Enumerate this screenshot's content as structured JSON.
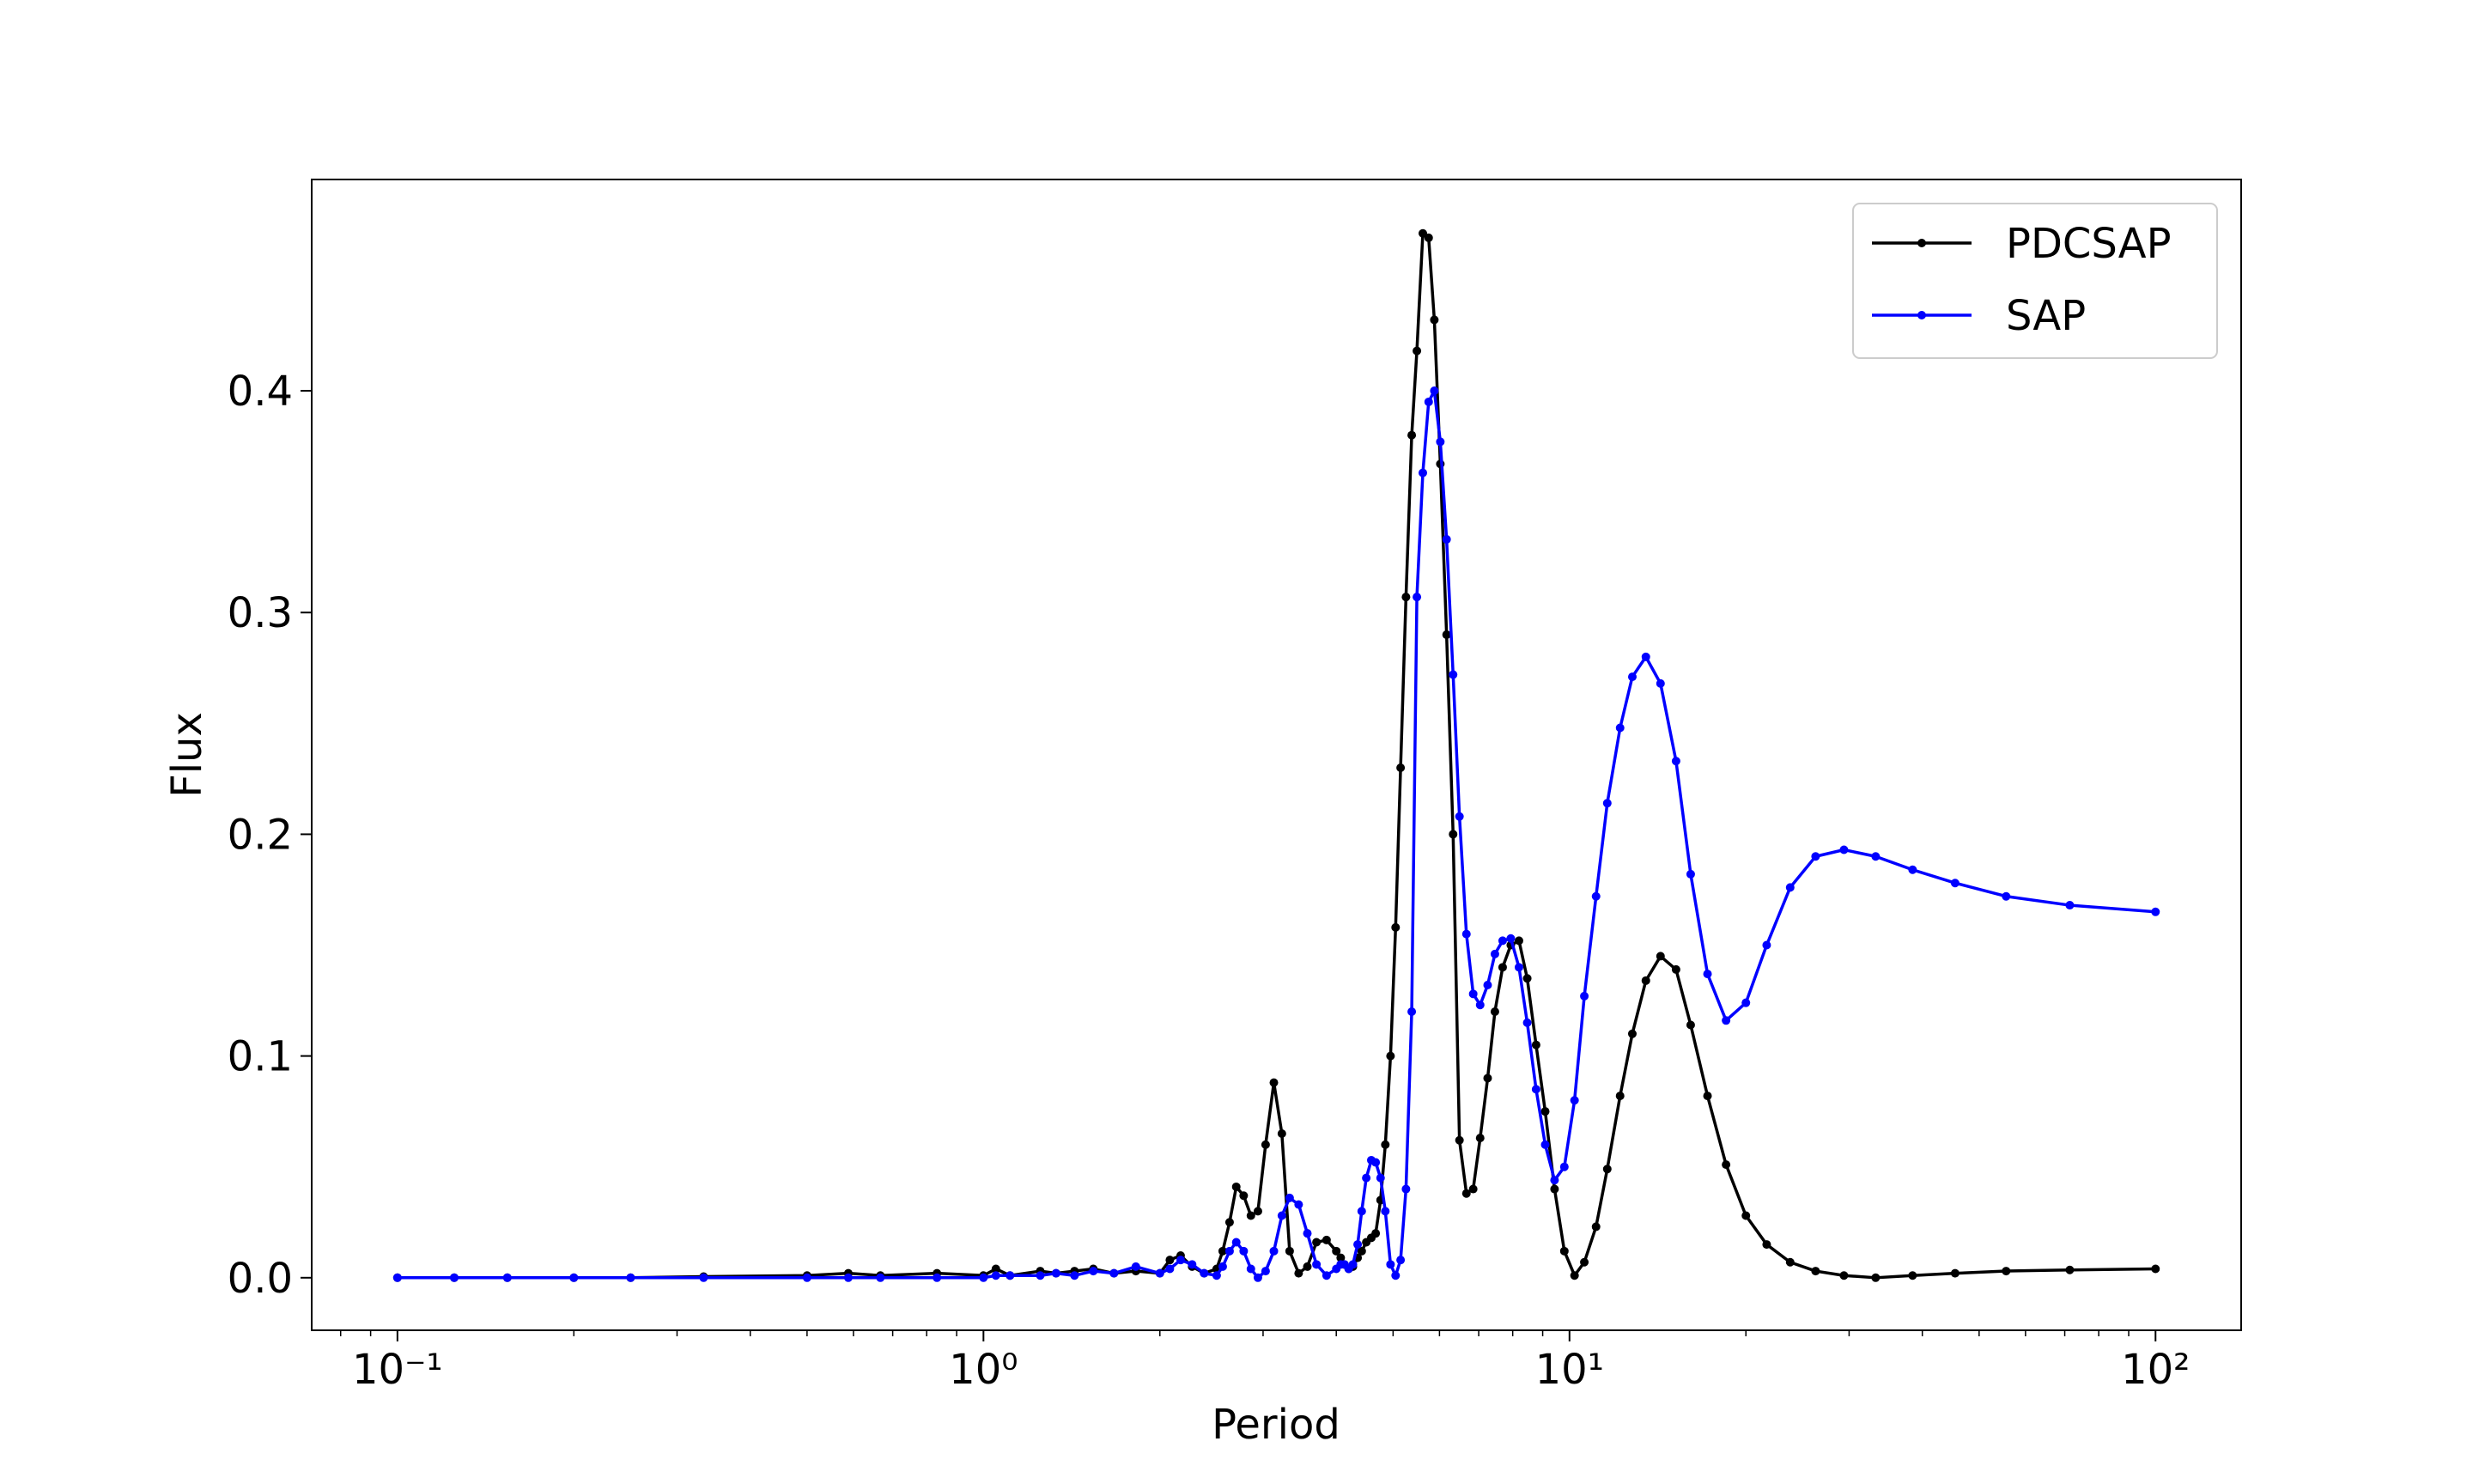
{
  "chart_data": {
    "type": "line",
    "xlabel": "Period",
    "ylabel": "Flux",
    "xscale": "log",
    "xlim": [
      0.0714,
      140
    ],
    "ylim": [
      -0.0237,
      0.4953
    ],
    "xticks": [
      {
        "value": 0.1,
        "label": "10⁻¹"
      },
      {
        "value": 1,
        "label": "10⁰"
      },
      {
        "value": 10,
        "label": "10¹"
      },
      {
        "value": 100,
        "label": "10²"
      }
    ],
    "xminorticks": [
      0.08,
      0.09,
      0.2,
      0.3,
      0.4,
      0.5,
      0.6,
      0.7,
      0.8,
      0.9,
      2,
      3,
      4,
      5,
      6,
      7,
      8,
      9,
      20,
      30,
      40,
      50,
      60,
      70,
      80,
      90
    ],
    "yticks": [
      {
        "value": 0,
        "label": "0.0"
      },
      0.1,
      0.2,
      0.3,
      0.4
    ],
    "legend": "upper right",
    "x": [
      100,
      71.4,
      55.6,
      45.5,
      38.5,
      33.3,
      29.4,
      26.3,
      23.8,
      21.7,
      20,
      18.5,
      17.2,
      16.1,
      15.2,
      14.3,
      13.5,
      12.8,
      12.2,
      11.6,
      11.1,
      10.6,
      10.2,
      9.8,
      9.43,
      9.09,
      8.77,
      8.47,
      8.2,
      7.94,
      7.69,
      7.46,
      7.25,
      7.04,
      6.85,
      6.67,
      6.49,
      6.33,
      6.17,
      6.02,
      5.88,
      5.75,
      5.62,
      5.49,
      5.38,
      5.26,
      5.15,
      5.05,
      4.95,
      4.85,
      4.76,
      4.67,
      4.59,
      4.5,
      4.42,
      4.35,
      4.27,
      4.2,
      4.13,
      4.07,
      4,
      3.85,
      3.7,
      3.57,
      3.45,
      3.33,
      3.23,
      3.13,
      3.03,
      2.94,
      2.86,
      2.78,
      2.7,
      2.63,
      2.56,
      2.5,
      2.38,
      2.27,
      2.17,
      2.08,
      2,
      1.82,
      1.67,
      1.54,
      1.43,
      1.33,
      1.25,
      1.11,
      1.05,
      1,
      0.833,
      0.667,
      0.588,
      0.5,
      0.333,
      0.25,
      0.2,
      0.154,
      0.125,
      0.1
    ],
    "series": [
      {
        "name": "PDCSAP",
        "color": "#000000",
        "values": [
          0.004,
          0.0035,
          0.003,
          0.002,
          0.001,
          0,
          0.001,
          0.003,
          0.007,
          0.015,
          0.028,
          0.051,
          0.082,
          0.114,
          0.139,
          0.145,
          0.134,
          0.11,
          0.082,
          0.049,
          0.023,
          0.007,
          0.001,
          0.012,
          0.04,
          0.075,
          0.105,
          0.135,
          0.152,
          0.15,
          0.14,
          0.12,
          0.09,
          0.063,
          0.04,
          0.038,
          0.062,
          0.2,
          0.29,
          0.367,
          0.432,
          0.469,
          0.471,
          0.418,
          0.38,
          0.307,
          0.23,
          0.158,
          0.1,
          0.06,
          0.035,
          0.02,
          0.018,
          0.016,
          0.012,
          0.009,
          0.005,
          0.004,
          0.006,
          0.009,
          0.012,
          0.017,
          0.016,
          0.005,
          0.002,
          0.012,
          0.065,
          0.088,
          0.06,
          0.03,
          0.028,
          0.037,
          0.041,
          0.025,
          0.012,
          0.004,
          0.002,
          0.005,
          0.01,
          0.008,
          0.002,
          0.003,
          0.002,
          0.004,
          0.003,
          0.002,
          0.003,
          0.001,
          0.004,
          0.001,
          0.002,
          0.001,
          0.002,
          0.001,
          0.0005,
          0,
          0,
          0,
          0,
          0
        ]
      },
      {
        "name": "SAP",
        "color": "#0000ff",
        "values": [
          0.165,
          0.168,
          0.172,
          0.178,
          0.184,
          0.19,
          0.193,
          0.19,
          0.176,
          0.15,
          0.124,
          0.116,
          0.137,
          0.182,
          0.233,
          0.268,
          0.28,
          0.271,
          0.248,
          0.214,
          0.172,
          0.127,
          0.08,
          0.05,
          0.044,
          0.06,
          0.085,
          0.115,
          0.14,
          0.153,
          0.152,
          0.146,
          0.132,
          0.123,
          0.128,
          0.155,
          0.208,
          0.272,
          0.333,
          0.377,
          0.4,
          0.395,
          0.363,
          0.307,
          0.12,
          0.04,
          0.008,
          0.001,
          0.006,
          0.03,
          0.045,
          0.052,
          0.053,
          0.045,
          0.03,
          0.015,
          0.006,
          0.004,
          0.006,
          0.006,
          0.004,
          0.001,
          0.006,
          0.02,
          0.033,
          0.036,
          0.028,
          0.012,
          0.003,
          0,
          0.004,
          0.012,
          0.016,
          0.012,
          0.005,
          0.001,
          0.002,
          0.006,
          0.008,
          0.004,
          0.002,
          0.005,
          0.002,
          0.003,
          0.001,
          0.002,
          0.001,
          0.001,
          0.001,
          0,
          0,
          0,
          0,
          0,
          0,
          0,
          0,
          0,
          0,
          0
        ]
      }
    ]
  }
}
